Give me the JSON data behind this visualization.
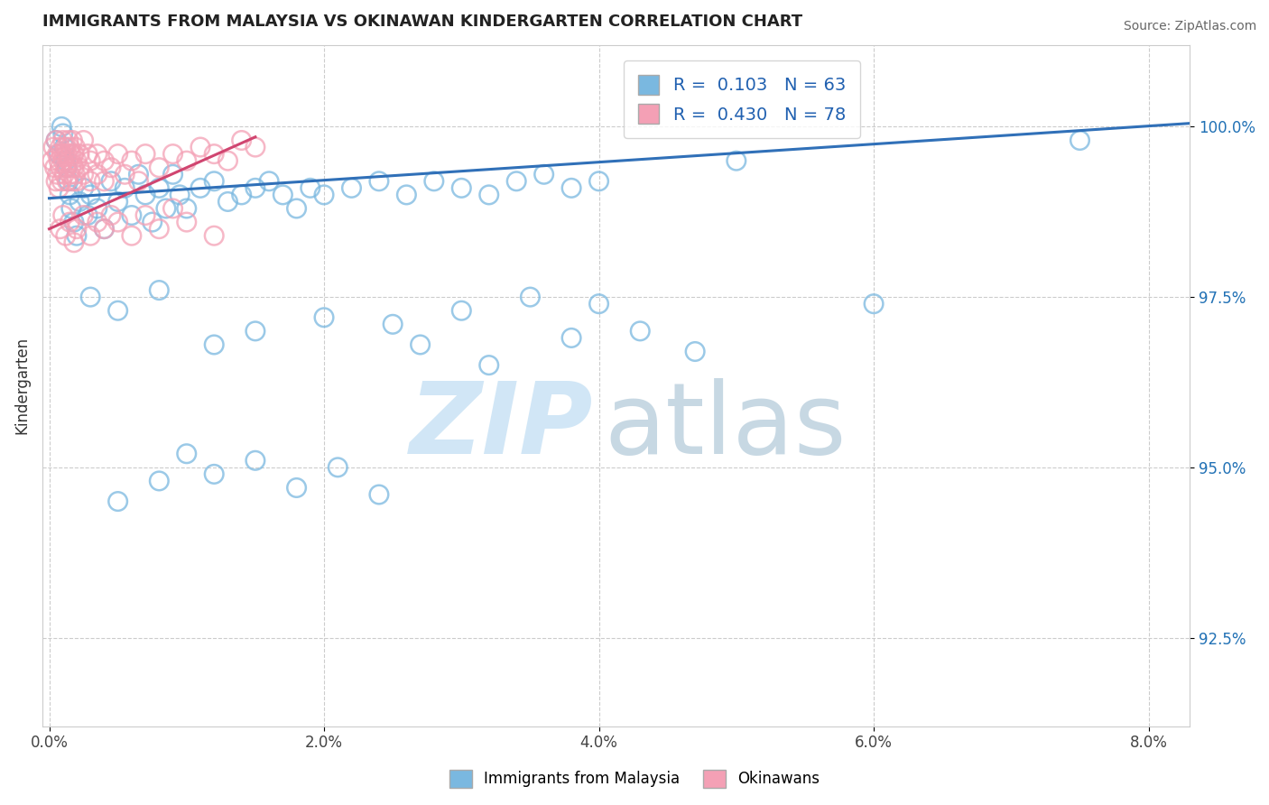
{
  "title": "IMMIGRANTS FROM MALAYSIA VS OKINAWAN KINDERGARTEN CORRELATION CHART",
  "source": "Source: ZipAtlas.com",
  "xlabel_vals": [
    0.0,
    2.0,
    4.0,
    6.0,
    8.0
  ],
  "ylabel_vals": [
    92.5,
    95.0,
    97.5,
    100.0
  ],
  "xlim": [
    -0.05,
    8.3
  ],
  "ylim": [
    91.2,
    101.2
  ],
  "ylabel": "Kindergarten",
  "legend_labels": [
    "Immigrants from Malaysia",
    "Okinawans"
  ],
  "blue_R": 0.103,
  "blue_N": 63,
  "pink_R": 0.43,
  "pink_N": 78,
  "blue_color": "#7ab8e0",
  "pink_color": "#f4a0b5",
  "blue_line_color": "#3070b8",
  "pink_line_color": "#d04570",
  "blue_scatter_x": [
    0.05,
    0.07,
    0.09,
    0.1,
    0.11,
    0.12,
    0.13,
    0.14,
    0.15,
    0.16,
    0.18,
    0.2,
    0.22,
    0.25,
    0.28,
    0.3,
    0.35,
    0.4,
    0.45,
    0.5,
    0.55,
    0.6,
    0.65,
    0.7,
    0.75,
    0.8,
    0.85,
    0.9,
    0.95,
    1.0,
    1.1,
    1.2,
    1.3,
    1.4,
    1.5,
    1.6,
    1.7,
    1.8,
    1.9,
    2.0,
    2.2,
    2.4,
    2.6,
    2.8,
    3.0,
    3.2,
    3.4,
    3.6,
    3.8,
    4.0,
    0.3,
    0.5,
    0.8,
    1.2,
    1.5,
    2.0,
    2.5,
    3.0,
    3.5,
    4.0,
    5.0,
    6.0,
    7.5
  ],
  "blue_scatter_y": [
    99.8,
    99.6,
    100.0,
    99.9,
    99.7,
    99.5,
    99.4,
    99.2,
    99.0,
    98.8,
    98.6,
    98.4,
    98.9,
    99.1,
    98.7,
    99.0,
    98.8,
    98.5,
    99.2,
    98.9,
    99.1,
    98.7,
    99.3,
    99.0,
    98.6,
    99.1,
    98.8,
    99.3,
    99.0,
    98.8,
    99.1,
    99.2,
    98.9,
    99.0,
    99.1,
    99.2,
    99.0,
    98.8,
    99.1,
    99.0,
    99.1,
    99.2,
    99.0,
    99.2,
    99.1,
    99.0,
    99.2,
    99.3,
    99.1,
    99.2,
    97.5,
    97.3,
    97.6,
    96.8,
    97.0,
    97.2,
    97.1,
    97.3,
    97.5,
    97.4,
    99.5,
    97.4,
    99.8
  ],
  "pink_scatter_x": [
    0.02,
    0.03,
    0.04,
    0.05,
    0.05,
    0.06,
    0.06,
    0.07,
    0.07,
    0.08,
    0.08,
    0.09,
    0.09,
    0.1,
    0.1,
    0.11,
    0.11,
    0.12,
    0.12,
    0.13,
    0.13,
    0.14,
    0.14,
    0.15,
    0.15,
    0.16,
    0.16,
    0.17,
    0.17,
    0.18,
    0.18,
    0.19,
    0.19,
    0.2,
    0.2,
    0.22,
    0.22,
    0.25,
    0.25,
    0.28,
    0.3,
    0.3,
    0.35,
    0.35,
    0.4,
    0.4,
    0.45,
    0.5,
    0.55,
    0.6,
    0.65,
    0.7,
    0.8,
    0.9,
    1.0,
    1.1,
    1.2,
    1.3,
    1.4,
    1.5,
    0.08,
    0.1,
    0.12,
    0.15,
    0.18,
    0.2,
    0.25,
    0.3,
    0.35,
    0.4,
    0.45,
    0.5,
    0.6,
    0.7,
    0.8,
    0.9,
    1.0,
    1.2
  ],
  "pink_scatter_y": [
    99.5,
    99.7,
    99.4,
    99.8,
    99.2,
    99.6,
    99.3,
    99.5,
    99.1,
    99.7,
    99.4,
    99.6,
    99.2,
    99.8,
    99.5,
    99.6,
    99.3,
    99.7,
    99.4,
    99.6,
    99.2,
    99.8,
    99.5,
    99.7,
    99.3,
    99.6,
    99.4,
    99.8,
    99.2,
    99.6,
    99.4,
    99.7,
    99.3,
    99.5,
    99.2,
    99.6,
    99.4,
    99.8,
    99.3,
    99.6,
    99.5,
    99.2,
    99.6,
    99.3,
    99.5,
    99.2,
    99.4,
    99.6,
    99.3,
    99.5,
    99.2,
    99.6,
    99.4,
    99.6,
    99.5,
    99.7,
    99.6,
    99.5,
    99.8,
    99.7,
    98.5,
    98.7,
    98.4,
    98.6,
    98.3,
    98.5,
    98.7,
    98.4,
    98.6,
    98.5,
    98.7,
    98.6,
    98.4,
    98.7,
    98.5,
    98.8,
    98.6,
    98.4
  ],
  "blue_outliers_x": [
    0.5,
    0.8,
    1.0,
    1.2,
    1.5,
    1.8,
    2.1,
    2.4,
    2.7,
    3.2,
    3.8,
    4.3,
    4.7
  ],
  "blue_outliers_y": [
    94.5,
    94.8,
    95.2,
    94.9,
    95.1,
    94.7,
    95.0,
    94.6,
    96.8,
    96.5,
    96.9,
    97.0,
    96.7
  ]
}
